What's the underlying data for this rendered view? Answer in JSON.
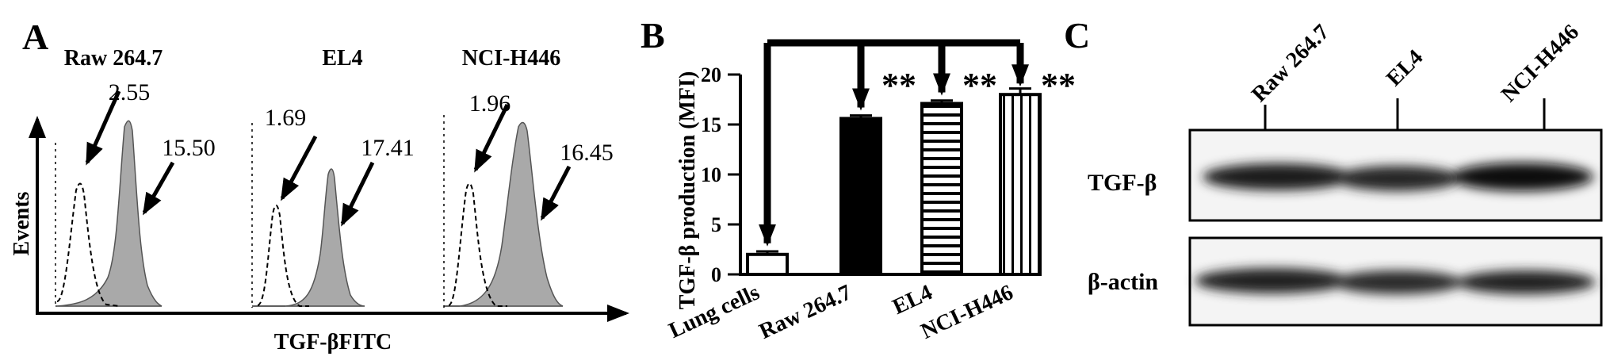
{
  "panels": {
    "a": "A",
    "b": "B",
    "c": "C"
  },
  "panel_a": {
    "y_axis_label": "Events",
    "x_axis_label": "TGF-βFITC",
    "histograms": [
      {
        "header": "Raw 264.7",
        "control_mfi": "2.55",
        "stained_mfi": "15.50"
      },
      {
        "header": "EL4",
        "control_mfi": "1.69",
        "stained_mfi": "17.41"
      },
      {
        "header": "NCI-H446",
        "control_mfi": "1.96",
        "stained_mfi": "16.45"
      }
    ],
    "fill_color": "#a9a9a9"
  },
  "chart_data": {
    "type": "bar",
    "categories": [
      "Lung cells",
      "Raw 264.7",
      "EL4",
      "NCI-H446"
    ],
    "values": [
      2.0,
      15.6,
      17.1,
      18.0
    ],
    "errors": [
      0.3,
      0.3,
      0.3,
      0.6
    ],
    "ylabel": "TGF-β production (MFI)",
    "ylim": [
      0,
      20
    ],
    "yticks": [
      0,
      5,
      10,
      15,
      20
    ],
    "fills": [
      "white",
      "black",
      "horizontal-stripes",
      "vertical-stripes"
    ],
    "significance": [
      "**",
      "**",
      "**"
    ],
    "grid": false
  },
  "panel_c": {
    "lanes": [
      "Raw 264.7",
      "EL4",
      "NCI-H446"
    ],
    "rows": [
      "TGF-β",
      "β-actin"
    ]
  }
}
